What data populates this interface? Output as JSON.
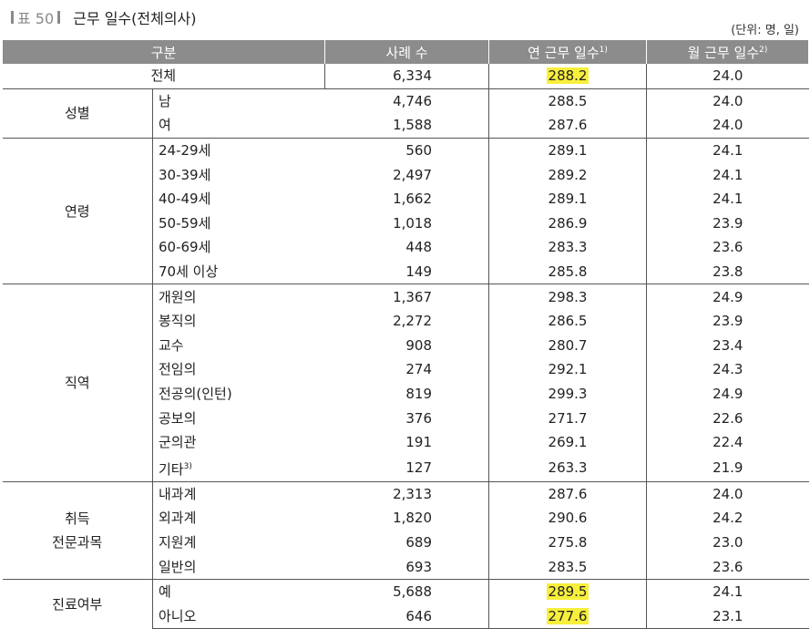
{
  "title": {
    "label": "표 50",
    "name": "근무 일수(전체의사)"
  },
  "unit": "(단위: 명, 일)",
  "header": {
    "category": "구분",
    "cases": "사례 수",
    "annual": "연 근무 일수",
    "annual_note": "1)",
    "monthly": "월 근무 일수",
    "monthly_note": "2)"
  },
  "total": {
    "label": "전체",
    "cases": "6,334",
    "annual": "288.2",
    "monthly": "24.0",
    "highlight": true
  },
  "groups": [
    {
      "name": "성별",
      "rows": [
        {
          "label": "남",
          "cases": "4,746",
          "annual": "288.5",
          "monthly": "24.0"
        },
        {
          "label": "여",
          "cases": "1,588",
          "annual": "287.6",
          "monthly": "24.0"
        }
      ]
    },
    {
      "name": "연령",
      "rows": [
        {
          "label": "24-29세",
          "cases": "560",
          "annual": "289.1",
          "monthly": "24.1"
        },
        {
          "label": "30-39세",
          "cases": "2,497",
          "annual": "289.2",
          "monthly": "24.1"
        },
        {
          "label": "40-49세",
          "cases": "1,662",
          "annual": "289.1",
          "monthly": "24.1"
        },
        {
          "label": "50-59세",
          "cases": "1,018",
          "annual": "286.9",
          "monthly": "23.9"
        },
        {
          "label": "60-69세",
          "cases": "448",
          "annual": "283.3",
          "monthly": "23.6"
        },
        {
          "label": "70세 이상",
          "cases": "149",
          "annual": "285.8",
          "monthly": "23.8"
        }
      ]
    },
    {
      "name": "직역",
      "rows": [
        {
          "label": "개원의",
          "cases": "1,367",
          "annual": "298.3",
          "monthly": "24.9"
        },
        {
          "label": "봉직의",
          "cases": "2,272",
          "annual": "286.5",
          "monthly": "23.9"
        },
        {
          "label": "교수",
          "cases": "908",
          "annual": "280.7",
          "monthly": "23.4"
        },
        {
          "label": "전임의",
          "cases": "274",
          "annual": "292.1",
          "monthly": "24.3"
        },
        {
          "label": "전공의(인턴)",
          "cases": "819",
          "annual": "299.3",
          "monthly": "24.9"
        },
        {
          "label": "공보의",
          "cases": "376",
          "annual": "271.7",
          "monthly": "22.6"
        },
        {
          "label": "군의관",
          "cases": "191",
          "annual": "269.1",
          "monthly": "22.4"
        },
        {
          "label": "기타",
          "note": "3)",
          "cases": "127",
          "annual": "263.3",
          "monthly": "21.9"
        }
      ]
    },
    {
      "name": "취득\n전문과목",
      "rows": [
        {
          "label": "내과계",
          "cases": "2,313",
          "annual": "287.6",
          "monthly": "24.0"
        },
        {
          "label": "외과계",
          "cases": "1,820",
          "annual": "290.6",
          "monthly": "24.2"
        },
        {
          "label": "지원계",
          "cases": "689",
          "annual": "275.8",
          "monthly": "23.0"
        },
        {
          "label": "일반의",
          "cases": "693",
          "annual": "283.5",
          "monthly": "23.6"
        }
      ]
    },
    {
      "name": "진료여부",
      "rows": [
        {
          "label": "예",
          "cases": "5,688",
          "annual": "289.5",
          "monthly": "24.1",
          "highlight": true
        },
        {
          "label": "아니오",
          "cases": "646",
          "annual": "277.6",
          "monthly": "23.1",
          "highlight": true
        }
      ]
    }
  ],
  "colors": {
    "header_bg": "#8c8c8c",
    "highlight": "#f7ef3c",
    "label_gray": "#8a8a8a"
  }
}
